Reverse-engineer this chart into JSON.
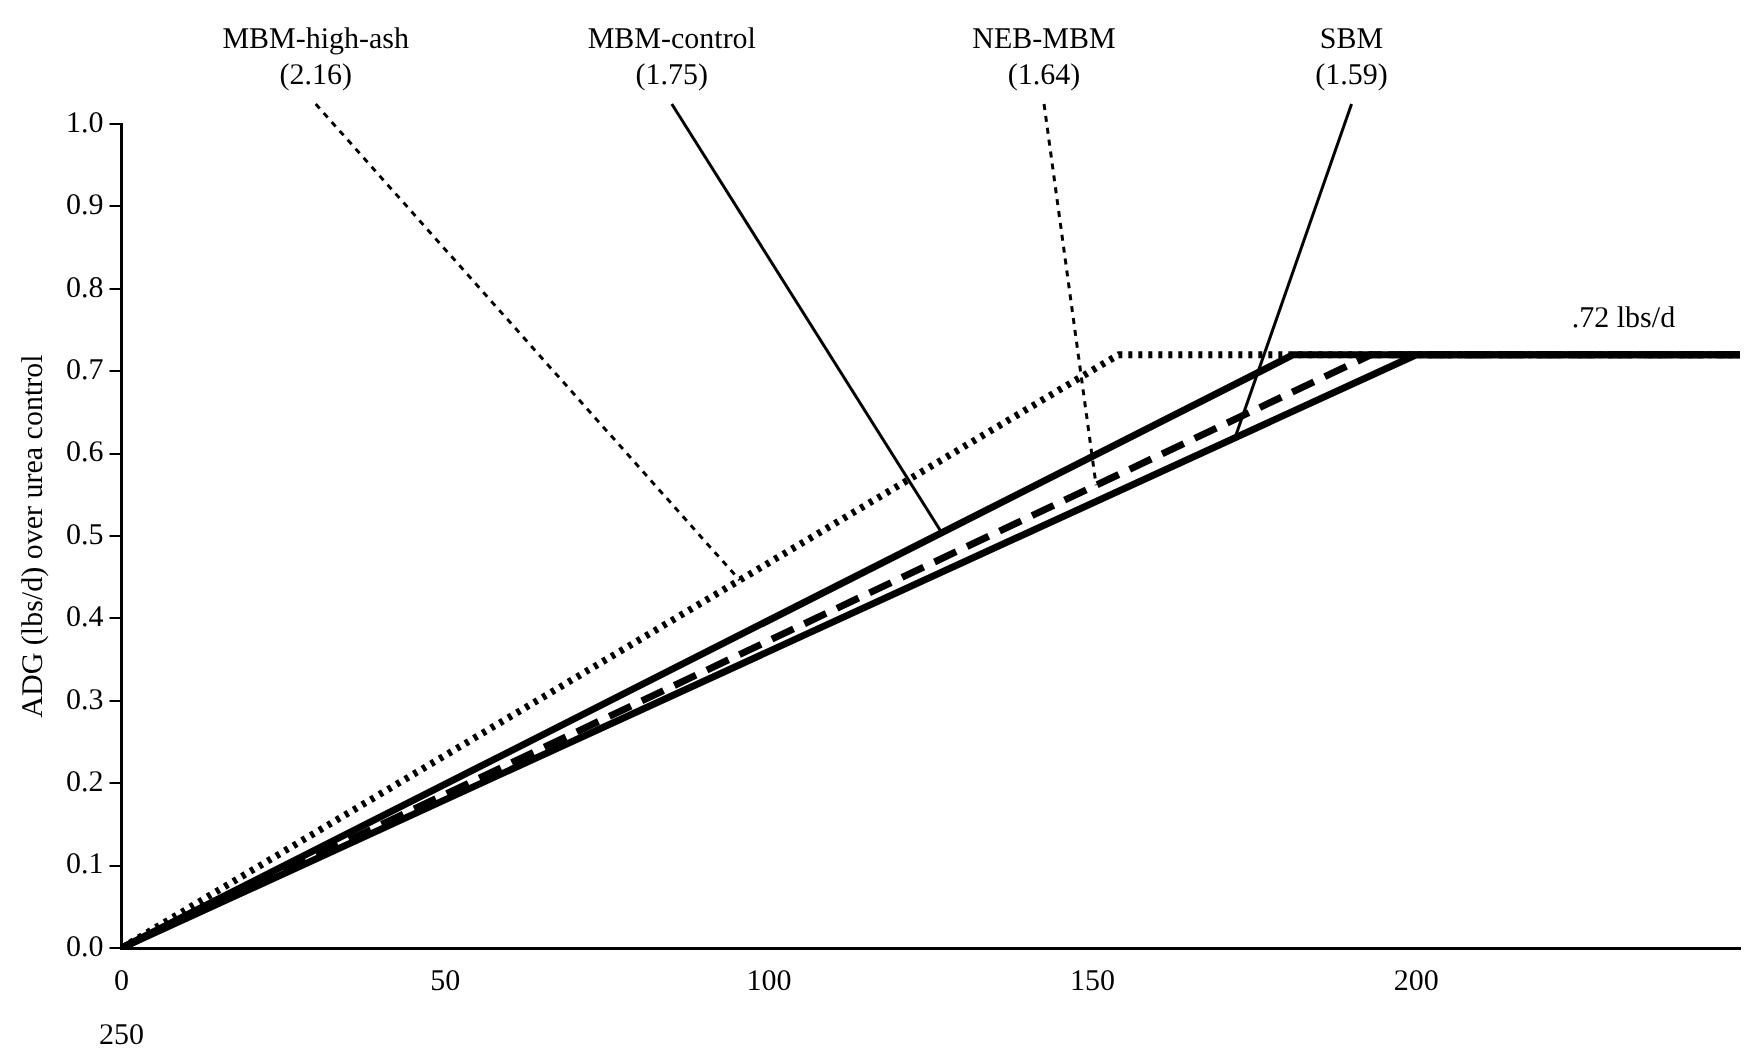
{
  "chart_data": {
    "type": "line",
    "ylabel": "ADG (lbs/d) over urea control",
    "xlim": [
      0,
      250
    ],
    "xticks": [
      0,
      50,
      100,
      150,
      200
    ],
    "ylim": [
      0,
      1
    ],
    "yticks": [
      {
        "value": 0,
        "label": "0.0"
      },
      {
        "value": 0.1,
        "label": "0.1"
      },
      {
        "value": 0.2,
        "label": "0.2"
      },
      {
        "value": 0.3,
        "label": "0.3"
      },
      {
        "value": 0.4,
        "label": "0.4"
      },
      {
        "value": 0.5,
        "label": "0.5"
      },
      {
        "value": 0.6,
        "label": "0.6"
      },
      {
        "value": 0.7,
        "label": "0.7"
      },
      {
        "value": 0.8,
        "label": "0.8"
      },
      {
        "value": 0.9,
        "label": "0.9"
      },
      {
        "value": 1,
        "label": "1.0"
      }
    ],
    "grid": false,
    "legend": false,
    "marker": "none",
    "series": [
      {
        "name": "MBM-high-ash (2.16)",
        "color": "#000000",
        "line_style": "dotted",
        "x": [
          0,
          154,
          250
        ],
        "values": [
          0,
          0.72,
          0.72
        ]
      },
      {
        "name": "MBM-control (1.75)",
        "color": "#000000",
        "line_style": "solid",
        "x": [
          0,
          181,
          250
        ],
        "values": [
          0,
          0.72,
          0.72
        ]
      },
      {
        "name": "NEB-MBM (1.64)",
        "color": "#000000",
        "line_style": "dashed",
        "x": [
          0,
          193,
          250
        ],
        "values": [
          0,
          0.72,
          0.72
        ]
      },
      {
        "name": "SBM (1.59)",
        "color": "#000000",
        "line_style": "solid",
        "x": [
          0,
          200,
          250
        ],
        "values": [
          0,
          0.72,
          0.72
        ]
      }
    ],
    "annotations": [
      {
        "text": ".72 lbs/d",
        "x": 232,
        "y": 0.72
      },
      "250"
    ]
  }
}
